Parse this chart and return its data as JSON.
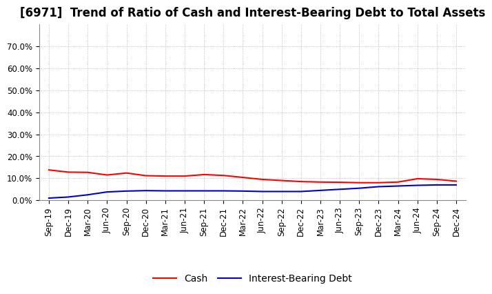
{
  "title": "[6971]  Trend of Ratio of Cash and Interest-Bearing Debt to Total Assets",
  "x_labels": [
    "Sep-19",
    "Dec-19",
    "Mar-20",
    "Jun-20",
    "Sep-20",
    "Dec-20",
    "Mar-21",
    "Jun-21",
    "Sep-21",
    "Dec-21",
    "Mar-22",
    "Jun-22",
    "Sep-22",
    "Dec-22",
    "Mar-23",
    "Jun-23",
    "Sep-23",
    "Dec-23",
    "Mar-24",
    "Jun-24",
    "Sep-24",
    "Dec-24"
  ],
  "cash": [
    13.8,
    12.8,
    12.7,
    11.5,
    12.4,
    11.2,
    11.0,
    11.0,
    11.7,
    11.3,
    10.4,
    9.5,
    9.0,
    8.5,
    8.3,
    8.2,
    8.0,
    8.0,
    8.3,
    9.8,
    9.5,
    8.7
  ],
  "interest_bearing_debt": [
    1.0,
    1.5,
    2.5,
    3.8,
    4.2,
    4.4,
    4.3,
    4.3,
    4.3,
    4.3,
    4.2,
    4.0,
    4.0,
    4.0,
    4.5,
    5.0,
    5.5,
    6.2,
    6.5,
    6.8,
    7.0,
    7.0
  ],
  "cash_color": "#ff0000",
  "debt_color": "#0000cd",
  "ylim_min": 0,
  "ylim_max": 80,
  "yticks": [
    0,
    10,
    20,
    30,
    40,
    50,
    60,
    70
  ],
  "ytick_labels": [
    "0.0%",
    "10.0%",
    "20.0%",
    "30.0%",
    "40.0%",
    "50.0%",
    "60.0%",
    "70.0%"
  ],
  "background_color": "#ffffff",
  "grid_color": "#999999",
  "legend_cash": "Cash",
  "legend_debt": "Interest-Bearing Debt",
  "title_fontsize": 12,
  "tick_fontsize": 8.5,
  "legend_fontsize": 10
}
